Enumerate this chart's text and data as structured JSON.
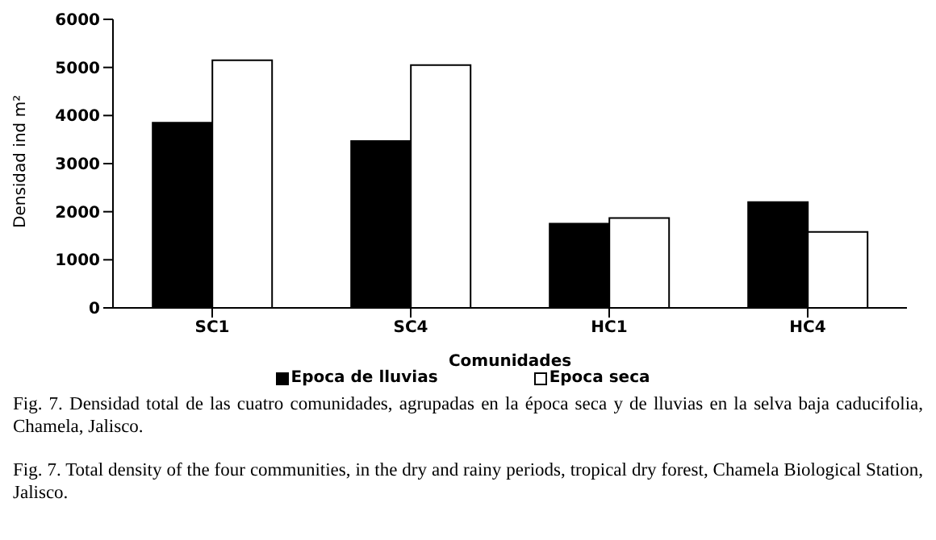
{
  "chart_data": {
    "type": "bar",
    "xlabel": "Comunidades",
    "ylabel": "Densidad ind m²",
    "categories": [
      "SC1",
      "SC4",
      "HC1",
      "HC4"
    ],
    "series": [
      {
        "name": "Epoca de lluvias",
        "color": "#000000",
        "values": [
          3850,
          3470,
          1750,
          2200
        ]
      },
      {
        "name": "Epoca seca",
        "color": "#ffffff",
        "values": [
          5150,
          5050,
          1870,
          1580
        ]
      }
    ],
    "ylim": [
      0,
      6000
    ],
    "yticks": [
      0,
      1000,
      2000,
      3000,
      4000,
      5000,
      6000
    ],
    "grid": false,
    "legend": "bottom",
    "annotations": [
      "Fig. 7. Densidad total de las cuatro comunidades, agrupadas en la época seca y de lluvias en la selva baja caducifolia, Chamela, Jalisco.",
      "Fig. 7. Total density of the four communities, in the dry and rainy periods, tropical dry forest, Chamela Biological Station, Jalisco."
    ]
  }
}
